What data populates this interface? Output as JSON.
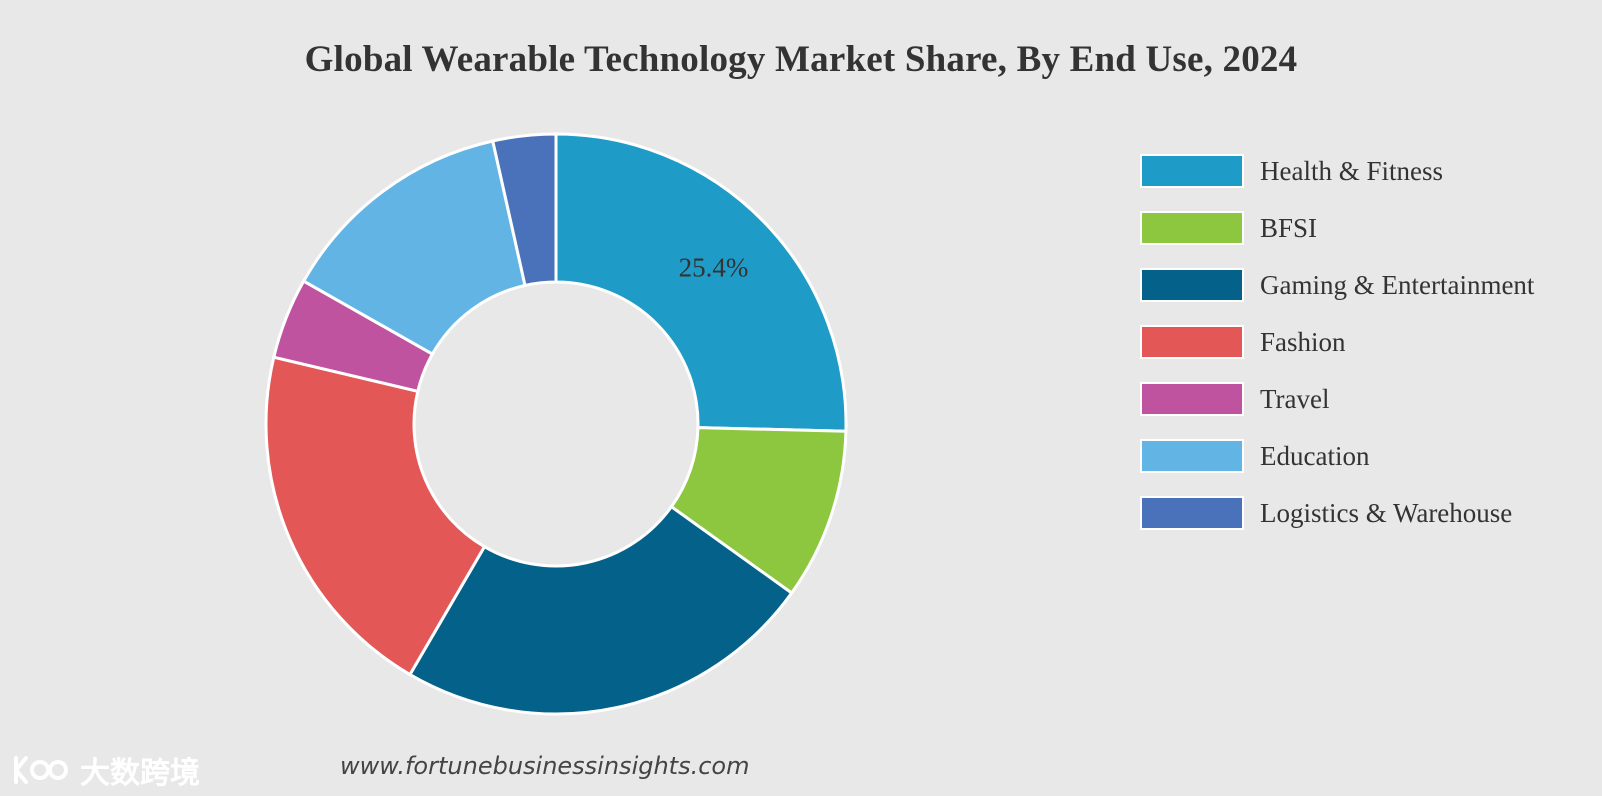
{
  "chart_data": {
    "type": "pie",
    "variant": "donut",
    "title": "Global Wearable Technology Market Share, By End Use, 2024",
    "categories": [
      "Health & Fitness",
      "BFSI",
      "Gaming & Entertainment",
      "Fashion",
      "Travel",
      "Education",
      "Logistics & Warehouse"
    ],
    "values": [
      25.4,
      9.5,
      23.5,
      20.3,
      4.5,
      13.3,
      3.5
    ],
    "colors": [
      "#1e9bc6",
      "#8dc63f",
      "#03618a",
      "#e35757",
      "#c0539f",
      "#62b4e4",
      "#4a72ba"
    ],
    "data_labels": [
      {
        "category": "Health & Fitness",
        "text": "25.4%"
      }
    ],
    "legend_position": "right"
  },
  "source_text": "www.fortunebusinessinsights.com",
  "watermark": {
    "text": "大数跨境",
    "logo_icon": "k-loop-logo-icon"
  }
}
